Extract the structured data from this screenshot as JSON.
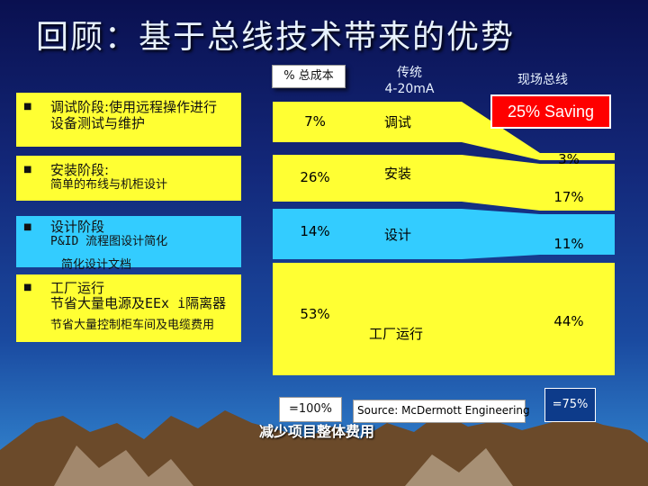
{
  "title": "回顾：基于总线技术带来的优势",
  "headers": {
    "total_cost": "% 总成本",
    "traditional": "传统\n4-20mA",
    "fieldbus": "现场总线"
  },
  "saving_badge": "25% Saving",
  "rows": [
    {
      "label": "调试阶段:使用远程操作进行",
      "label2": "设备测试与维护",
      "pct": "7%",
      "stage": "调试",
      "fieldbus_pct": "3%"
    },
    {
      "label": "安装阶段:",
      "label2": "简单的布线与机柜设计",
      "pct": "26%",
      "stage": "安装",
      "fieldbus_pct": "17%"
    },
    {
      "label": "设计阶段",
      "label2": "P&ID 流程图设计简化",
      "label3": "简化设计文档",
      "pct": "14%",
      "stage": "设计",
      "fieldbus_pct": "11%"
    },
    {
      "label": "工厂运行",
      "label2": "节省大量电源及EEx i隔离器",
      "label3": "节省大量控制柜车间及电缆费用",
      "pct": "53%",
      "stage": "工厂运行",
      "fieldbus_pct": "44%"
    }
  ],
  "totals": {
    "left": "=100%",
    "right": "=75%"
  },
  "source": "Source: McDermott Engineering",
  "footer": "减少项目整体费用",
  "colors": {
    "commissioning": "#ffff33",
    "installation": "#ffff33",
    "design": "#33ccff",
    "operation": "#ffff33",
    "saving": "#ff0000"
  }
}
